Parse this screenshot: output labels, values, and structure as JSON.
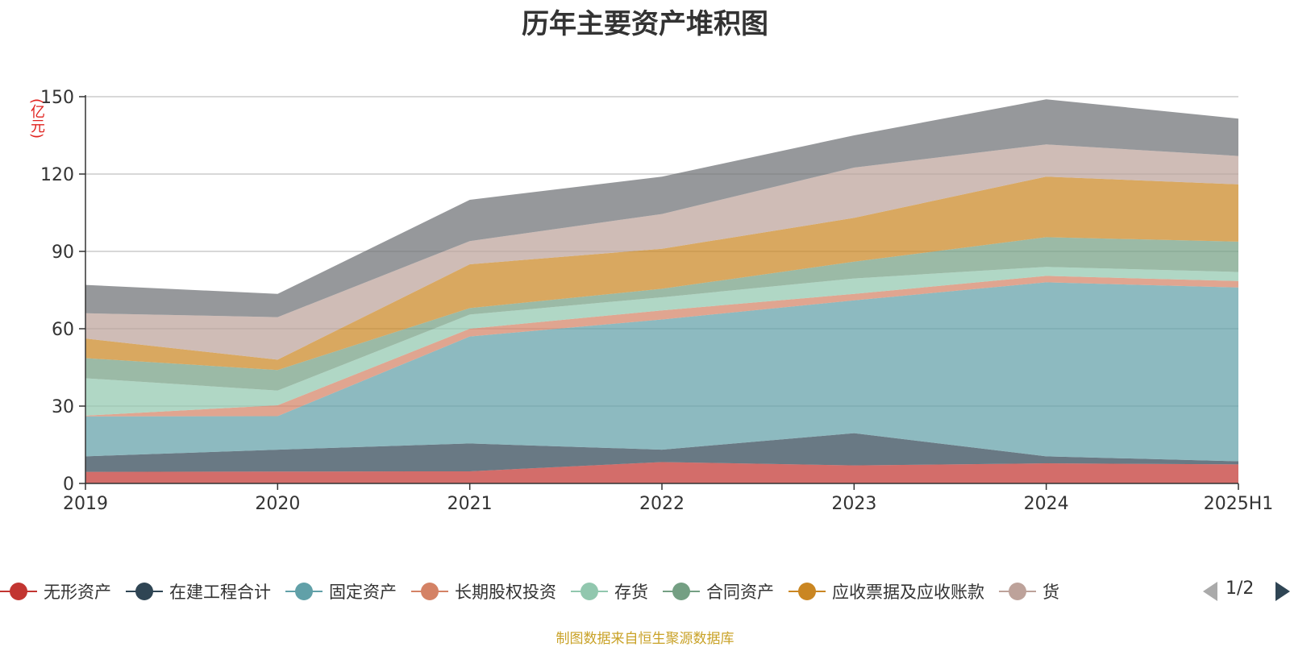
{
  "chart_data": {
    "type": "area",
    "stacked": true,
    "title": "历年主要资产堆积图",
    "ylabel": "(亿元)",
    "ylim": [
      0,
      150
    ],
    "yticks": [
      0,
      30,
      60,
      90,
      120,
      150
    ],
    "grid": true,
    "legend_position": "bottom",
    "categories": [
      "2019",
      "2020",
      "2021",
      "2022",
      "2023",
      "2024",
      "2025H1"
    ],
    "series": [
      {
        "name": "无形资产",
        "color": "#c23531",
        "values": [
          4.5,
          4.6,
          4.7,
          8.3,
          7.0,
          7.8,
          7.4
        ]
      },
      {
        "name": "在建工程合计",
        "color": "#2f4554",
        "values": [
          6.0,
          8.5,
          10.8,
          4.8,
          12.5,
          2.7,
          1.2
        ]
      },
      {
        "name": "固定资产",
        "color": "#61a0a8",
        "values": [
          15.5,
          13.0,
          41.5,
          50.5,
          51.5,
          67.5,
          67.4
        ]
      },
      {
        "name": "长期股权投资",
        "color": "#d48265",
        "values": [
          0.3,
          4.2,
          3.0,
          3.5,
          2.5,
          2.5,
          2.5
        ]
      },
      {
        "name": "存货",
        "color": "#91c7ae",
        "values": [
          14.5,
          5.7,
          5.5,
          5.1,
          6.0,
          3.5,
          3.5
        ]
      },
      {
        "name": "合同资产",
        "color": "#749f83",
        "values": [
          7.8,
          8.0,
          2.5,
          3.3,
          6.5,
          11.5,
          11.8
        ]
      },
      {
        "name": "应收票据及应收账款",
        "color": "#ca8622",
        "values": [
          7.6,
          4.0,
          17.0,
          15.5,
          17.0,
          23.5,
          22.2
        ]
      },
      {
        "name": "货币资金",
        "color": "#bda29a",
        "values": [
          9.8,
          16.5,
          9.0,
          13.5,
          19.5,
          12.5,
          11.0
        ]
      },
      {
        "name": "",
        "color": "#6e7074",
        "values": [
          11.0,
          9.0,
          16.0,
          14.5,
          12.5,
          17.5,
          14.5
        ]
      }
    ]
  },
  "legend": {
    "visible_items": [
      "无形资产",
      "在建工程合计",
      "固定资产",
      "长期股权投资",
      "存货",
      "合同资产",
      "应收票据及应收账款",
      "货"
    ],
    "page_label": "1/2"
  },
  "source": "制图数据来自恒生聚源数据库"
}
